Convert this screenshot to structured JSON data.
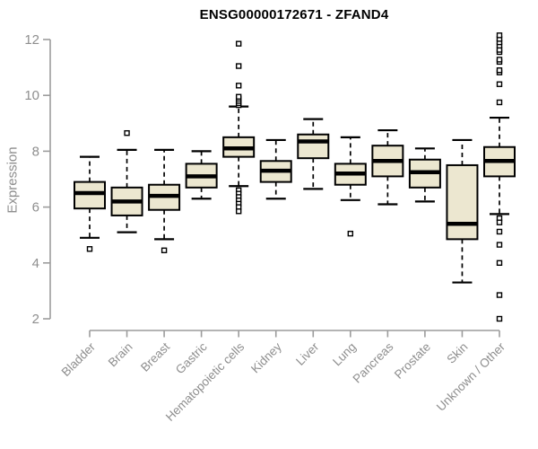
{
  "chart_data": {
    "type": "boxplot",
    "title": "ENSG00000172671 - ZFAND4",
    "ylabel": "Expression",
    "xlabel": "",
    "ylim": [
      2,
      12
    ],
    "yticks": [
      2,
      4,
      6,
      8,
      10,
      12
    ],
    "grid": false,
    "legend": "none",
    "categories": [
      "Bladder",
      "Brain",
      "Breast",
      "Gastric",
      "Hematopoietic cells",
      "Kidney",
      "Liver",
      "Lung",
      "Pancreas",
      "Prostate",
      "Skin",
      "Unknown / Other"
    ],
    "series": [
      {
        "name": "Bladder",
        "whisker_low": 4.9,
        "q1": 5.95,
        "median": 6.5,
        "q3": 6.9,
        "whisker_high": 7.8,
        "outliers": [
          4.5
        ]
      },
      {
        "name": "Brain",
        "whisker_low": 5.1,
        "q1": 5.7,
        "median": 6.2,
        "q3": 6.7,
        "whisker_high": 8.05,
        "outliers": [
          8.65
        ]
      },
      {
        "name": "Breast",
        "whisker_low": 4.85,
        "q1": 5.9,
        "median": 6.4,
        "q3": 6.8,
        "whisker_high": 8.05,
        "outliers": [
          4.45
        ]
      },
      {
        "name": "Gastric",
        "whisker_low": 6.3,
        "q1": 6.7,
        "median": 7.1,
        "q3": 7.55,
        "whisker_high": 8.0,
        "outliers": []
      },
      {
        "name": "Hematopoietic cells",
        "whisker_low": 6.75,
        "q1": 7.8,
        "median": 8.1,
        "q3": 8.5,
        "whisker_high": 9.6,
        "outliers": [
          9.65,
          9.72,
          9.8,
          9.88,
          9.95,
          10.35,
          11.05,
          11.85,
          6.6,
          6.48,
          6.36,
          6.24,
          6.12,
          6.0,
          5.85
        ]
      },
      {
        "name": "Kidney",
        "whisker_low": 6.3,
        "q1": 6.9,
        "median": 7.3,
        "q3": 7.65,
        "whisker_high": 8.4,
        "outliers": []
      },
      {
        "name": "Liver",
        "whisker_low": 6.65,
        "q1": 7.75,
        "median": 8.35,
        "q3": 8.6,
        "whisker_high": 9.15,
        "outliers": []
      },
      {
        "name": "Lung",
        "whisker_low": 6.25,
        "q1": 6.8,
        "median": 7.2,
        "q3": 7.55,
        "whisker_high": 8.5,
        "outliers": [
          5.05
        ]
      },
      {
        "name": "Pancreas",
        "whisker_low": 6.1,
        "q1": 7.1,
        "median": 7.65,
        "q3": 8.2,
        "whisker_high": 8.75,
        "outliers": []
      },
      {
        "name": "Prostate",
        "whisker_low": 6.2,
        "q1": 6.7,
        "median": 7.25,
        "q3": 7.7,
        "whisker_high": 8.1,
        "outliers": []
      },
      {
        "name": "Skin",
        "whisker_low": 3.3,
        "q1": 4.85,
        "median": 5.4,
        "q3": 7.5,
        "whisker_high": 8.4,
        "outliers": []
      },
      {
        "name": "Unknown / Other",
        "whisker_low": 5.75,
        "q1": 7.1,
        "median": 7.65,
        "q3": 8.15,
        "whisker_high": 9.2,
        "outliers": [
          9.75,
          10.4,
          10.82,
          10.9,
          11.2,
          11.28,
          11.55,
          11.63,
          11.78,
          11.9,
          12.02,
          12.15,
          5.6,
          5.45,
          5.12,
          4.65,
          4.0,
          2.85,
          2.0
        ]
      }
    ],
    "colors": {
      "box_fill": "#ece7d0",
      "box_border": "#000000",
      "median": "#000000",
      "whisker": "#000000",
      "outlier_fill": "#ffffff",
      "outlier_border": "#000000",
      "axis": "#9c9c9c",
      "tick_label": "#8e8e8e",
      "title": "#000000"
    }
  }
}
